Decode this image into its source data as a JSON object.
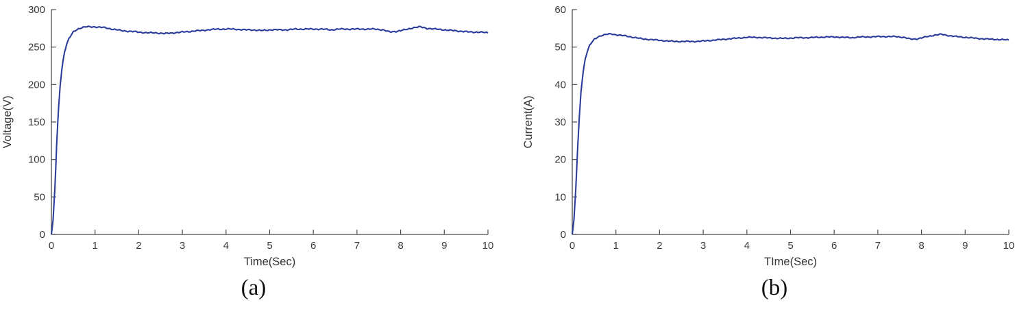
{
  "figure": {
    "captions": {
      "a": "(a)",
      "b": "(b)"
    }
  },
  "chart_data": [
    {
      "id": "voltage-vs-time",
      "type": "line",
      "title": "",
      "xlabel": "Time(Sec)",
      "ylabel": "Voltage(V)",
      "xlim": [
        0,
        10
      ],
      "ylim": [
        0,
        300
      ],
      "xticks": [
        0,
        1,
        2,
        3,
        4,
        5,
        6,
        7,
        8,
        9,
        10
      ],
      "yticks": [
        0,
        50,
        100,
        150,
        200,
        250,
        300
      ],
      "grid": false,
      "legend": null,
      "line_color": "#2b3d9b",
      "noise_amplitude": 1.0,
      "series": [
        {
          "name": "Voltage",
          "points": [
            [
              0,
              0
            ],
            [
              0.04,
              20
            ],
            [
              0.08,
              62
            ],
            [
              0.12,
              118
            ],
            [
              0.16,
              165
            ],
            [
              0.2,
              198
            ],
            [
              0.25,
              226
            ],
            [
              0.3,
              243
            ],
            [
              0.35,
              254
            ],
            [
              0.4,
              261
            ],
            [
              0.5,
              270
            ],
            [
              0.6,
              274
            ],
            [
              0.7,
              276
            ],
            [
              0.8,
              277
            ],
            [
              0.9,
              277
            ],
            [
              1.0,
              277
            ],
            [
              1.2,
              276
            ],
            [
              1.4,
              274
            ],
            [
              1.6,
              272
            ],
            [
              1.8,
              271
            ],
            [
              2.0,
              270
            ],
            [
              2.2,
              269
            ],
            [
              2.4,
              269
            ],
            [
              2.6,
              268
            ],
            [
              2.8,
              269
            ],
            [
              3.0,
              270
            ],
            [
              3.2,
              271
            ],
            [
              3.4,
              272
            ],
            [
              3.6,
              273
            ],
            [
              3.8,
              274
            ],
            [
              4.0,
              274
            ],
            [
              4.2,
              274
            ],
            [
              4.4,
              273
            ],
            [
              4.6,
              273
            ],
            [
              4.8,
              272
            ],
            [
              5.0,
              273
            ],
            [
              5.2,
              273
            ],
            [
              5.4,
              273
            ],
            [
              5.6,
              274
            ],
            [
              5.8,
              274
            ],
            [
              6.0,
              274
            ],
            [
              6.2,
              274
            ],
            [
              6.4,
              273
            ],
            [
              6.6,
              274
            ],
            [
              6.8,
              274
            ],
            [
              7.0,
              274
            ],
            [
              7.2,
              274
            ],
            [
              7.4,
              274
            ],
            [
              7.6,
              273
            ],
            [
              7.75,
              270
            ],
            [
              7.9,
              271
            ],
            [
              8.1,
              273
            ],
            [
              8.3,
              276
            ],
            [
              8.45,
              277
            ],
            [
              8.6,
              275
            ],
            [
              8.8,
              274
            ],
            [
              9.0,
              273
            ],
            [
              9.2,
              272
            ],
            [
              9.4,
              271
            ],
            [
              9.6,
              270
            ],
            [
              9.8,
              270
            ],
            [
              10,
              269
            ]
          ]
        }
      ]
    },
    {
      "id": "current-vs-time",
      "type": "line",
      "title": "",
      "xlabel": "TIme(Sec)",
      "ylabel": "Current(A)",
      "xlim": [
        0,
        10
      ],
      "ylim": [
        0,
        60
      ],
      "xticks": [
        0,
        1,
        2,
        3,
        4,
        5,
        6,
        7,
        8,
        9,
        10
      ],
      "yticks": [
        0,
        10,
        20,
        30,
        40,
        50,
        60
      ],
      "grid": false,
      "legend": null,
      "line_color": "#2b3d9b",
      "noise_amplitude": 0.18,
      "series": [
        {
          "name": "Current",
          "points": [
            [
              0,
              0
            ],
            [
              0.04,
              4
            ],
            [
              0.08,
              12
            ],
            [
              0.12,
              22
            ],
            [
              0.16,
              31
            ],
            [
              0.2,
              38
            ],
            [
              0.25,
              43.5
            ],
            [
              0.3,
              47
            ],
            [
              0.35,
              49
            ],
            [
              0.4,
              50.5
            ],
            [
              0.5,
              52
            ],
            [
              0.6,
              52.8
            ],
            [
              0.7,
              53.2
            ],
            [
              0.8,
              53.4
            ],
            [
              0.9,
              53.5
            ],
            [
              1.0,
              53.3
            ],
            [
              1.2,
              53
            ],
            [
              1.4,
              52.6
            ],
            [
              1.6,
              52.2
            ],
            [
              1.8,
              52
            ],
            [
              2.0,
              51.8
            ],
            [
              2.2,
              51.6
            ],
            [
              2.4,
              51.5
            ],
            [
              2.6,
              51.5
            ],
            [
              2.8,
              51.5
            ],
            [
              3.0,
              51.6
            ],
            [
              3.2,
              51.8
            ],
            [
              3.4,
              52
            ],
            [
              3.6,
              52.2
            ],
            [
              3.8,
              52.4
            ],
            [
              4.0,
              52.6
            ],
            [
              4.2,
              52.6
            ],
            [
              4.4,
              52.5
            ],
            [
              4.6,
              52.4
            ],
            [
              4.8,
              52.3
            ],
            [
              5.0,
              52.4
            ],
            [
              5.2,
              52.5
            ],
            [
              5.4,
              52.5
            ],
            [
              5.6,
              52.6
            ],
            [
              5.8,
              52.7
            ],
            [
              6.0,
              52.7
            ],
            [
              6.2,
              52.6
            ],
            [
              6.4,
              52.5
            ],
            [
              6.6,
              52.7
            ],
            [
              6.8,
              52.7
            ],
            [
              7.0,
              52.8
            ],
            [
              7.2,
              52.8
            ],
            [
              7.4,
              52.8
            ],
            [
              7.6,
              52.6
            ],
            [
              7.75,
              52.1
            ],
            [
              7.9,
              52.2
            ],
            [
              8.1,
              52.7
            ],
            [
              8.3,
              53.2
            ],
            [
              8.45,
              53.4
            ],
            [
              8.6,
              53.1
            ],
            [
              8.8,
              52.8
            ],
            [
              9.0,
              52.6
            ],
            [
              9.2,
              52.4
            ],
            [
              9.4,
              52.2
            ],
            [
              9.6,
              52.1
            ],
            [
              9.8,
              52
            ],
            [
              10,
              51.9
            ]
          ]
        }
      ]
    }
  ]
}
